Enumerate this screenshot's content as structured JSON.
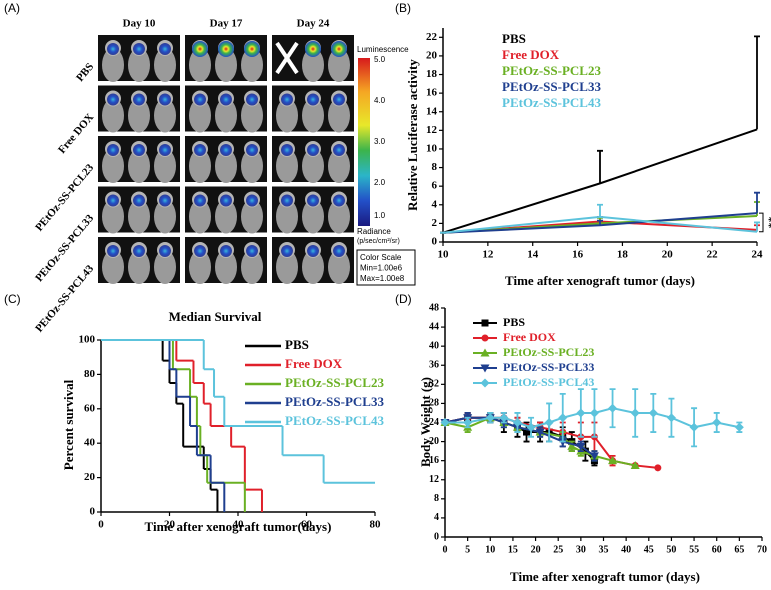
{
  "panel_labels": [
    "(A)",
    "(B)",
    "(C)",
    "(D)"
  ],
  "imaging": {
    "days": [
      "Day 10",
      "Day 17",
      "Day 24"
    ],
    "groups": [
      "PBS",
      "Free DOX",
      "PEtOz-SS-PCL23",
      "PEtOz-SS-PCL33",
      "PEtOz-SS-PCL43"
    ],
    "colorbar": {
      "title": "Luminescence",
      "ticks": [
        "5.0",
        "4.0",
        "3.0",
        "2.0",
        "1.0"
      ],
      "unit_title": "Radiance",
      "unit": "(p/sec/cm²/sr)"
    },
    "scale_box": [
      "Color Scale",
      "Min=1.00e6",
      "Max=1.00e8"
    ]
  },
  "chart_data": [
    {
      "type": "line",
      "x": [
        10,
        17,
        24
      ],
      "xlabel": "Time after xenograft tumor (days)",
      "ylabel": "Relative Luciferase activity",
      "xlim": [
        10,
        24
      ],
      "xticks": [
        10,
        12,
        14,
        16,
        18,
        20,
        22,
        24
      ],
      "ylim": [
        0,
        23
      ],
      "yticks": [
        0,
        2,
        4,
        6,
        8,
        10,
        12,
        14,
        16,
        18,
        20,
        22
      ],
      "legend": "upper left",
      "annotation": "**",
      "series": [
        {
          "name": "PBS",
          "color": "#000000",
          "values": [
            1,
            6.3,
            12.1
          ],
          "errors": [
            0,
            3.5,
            10
          ]
        },
        {
          "name": "Free DOX",
          "color": "#e0202a",
          "values": [
            1,
            2.2,
            1.3
          ],
          "errors": [
            0,
            0.5,
            0.5
          ]
        },
        {
          "name": "PEtOz-SS-PCL23",
          "color": "#6ab023",
          "values": [
            1,
            2.0,
            2.8
          ],
          "errors": [
            0,
            0.6,
            1.5
          ]
        },
        {
          "name": "PEtOz-SS-PCL33",
          "color": "#1f3f8f",
          "values": [
            1,
            1.8,
            3.1
          ],
          "errors": [
            0,
            0.5,
            2.2
          ]
        },
        {
          "name": "PEtOz-SS-PCL43",
          "color": "#5cc3dc",
          "values": [
            1,
            2.7,
            1.1
          ],
          "errors": [
            0,
            1.3,
            1.0
          ]
        }
      ]
    },
    {
      "type": "step",
      "title": "Median Survival",
      "xlabel": "Time after xenograft tumor(days)",
      "ylabel": "Percent survival",
      "xlim": [
        0,
        80
      ],
      "xticks": [
        0,
        20,
        40,
        60,
        80
      ],
      "ylim": [
        0,
        100
      ],
      "yticks": [
        0,
        20,
        40,
        60,
        80,
        100
      ],
      "legend": "upper right",
      "series": [
        {
          "name": "PBS",
          "color": "#000000",
          "x": [
            0,
            18,
            20,
            22,
            24,
            30,
            32,
            34
          ],
          "values": [
            100,
            88,
            75,
            63,
            38,
            25,
            13,
            0
          ]
        },
        {
          "name": "Free DOX",
          "color": "#e0202a",
          "x": [
            0,
            22,
            27,
            30,
            32,
            38,
            42,
            47
          ],
          "values": [
            100,
            88,
            75,
            63,
            50,
            38,
            13,
            0
          ]
        },
        {
          "name": "PEtOz-SS-PCL23",
          "color": "#6ab023",
          "x": [
            0,
            21,
            26,
            28,
            29,
            31,
            42
          ],
          "values": [
            100,
            83,
            67,
            50,
            33,
            17,
            0
          ]
        },
        {
          "name": "PEtOz-SS-PCL33",
          "color": "#1f3f8f",
          "x": [
            0,
            20,
            22,
            26,
            28,
            32,
            36
          ],
          "values": [
            100,
            83,
            67,
            50,
            33,
            17,
            0
          ]
        },
        {
          "name": "PEtOz-SS-PCL43",
          "color": "#5cc3dc",
          "x": [
            0,
            30,
            33,
            36,
            53,
            65,
            80
          ],
          "values": [
            100,
            83,
            67,
            50,
            33,
            17,
            17
          ]
        }
      ]
    },
    {
      "type": "line",
      "xlabel": "Time after xenograft tumor (days)",
      "ylabel": "Body Weight (g)",
      "xlim": [
        0,
        70
      ],
      "xticks": [
        0,
        5,
        10,
        15,
        20,
        25,
        30,
        35,
        40,
        45,
        50,
        55,
        60,
        65,
        70
      ],
      "ylim": [
        0,
        48
      ],
      "yticks": [
        0,
        4,
        8,
        12,
        16,
        20,
        24,
        28,
        32,
        36,
        40,
        44,
        48
      ],
      "legend": "upper left",
      "series": [
        {
          "name": "PBS",
          "color": "#000000",
          "marker": "square",
          "x": [
            0,
            5,
            10,
            13,
            16,
            18,
            21,
            23,
            26,
            28,
            31,
            33
          ],
          "values": [
            24,
            25,
            25,
            24,
            23,
            22,
            22,
            22,
            21,
            20,
            18,
            16
          ],
          "errors": [
            0,
            1,
            1,
            2,
            2,
            2,
            2,
            2,
            2,
            2,
            2,
            1
          ]
        },
        {
          "name": "Free DOX",
          "color": "#e0202a",
          "marker": "circle",
          "x": [
            0,
            5,
            10,
            13,
            16,
            21,
            26,
            30,
            33,
            37,
            42,
            47
          ],
          "values": [
            24,
            25,
            25,
            25,
            24,
            23,
            22,
            21,
            21,
            16,
            15,
            14.5
          ],
          "errors": [
            0,
            1,
            1,
            1,
            1,
            1,
            2,
            3,
            3,
            1,
            0,
            0
          ]
        },
        {
          "name": "PEtOz-SS-PCL23",
          "color": "#6ab023",
          "marker": "triangle-up",
          "x": [
            0,
            5,
            10,
            13,
            16,
            21,
            26,
            28,
            30,
            33,
            37,
            42
          ],
          "values": [
            24,
            23,
            25,
            24,
            23,
            22,
            21,
            19,
            18,
            17,
            16,
            15
          ],
          "errors": [
            0,
            1,
            1,
            1,
            1,
            1,
            1,
            1,
            1,
            1,
            0,
            0
          ]
        },
        {
          "name": "PEtOz-SS-PCL33",
          "color": "#1f3f8f",
          "marker": "triangle-down",
          "x": [
            0,
            5,
            10,
            13,
            16,
            21,
            26,
            30,
            33
          ],
          "values": [
            24,
            25,
            25,
            24,
            23,
            22,
            20,
            19,
            17
          ],
          "errors": [
            0,
            1,
            1,
            1,
            1,
            1,
            1,
            1,
            1
          ]
        },
        {
          "name": "PEtOz-SS-PCL43",
          "color": "#5cc3dc",
          "marker": "diamond",
          "x": [
            0,
            5,
            10,
            13,
            16,
            19,
            23,
            26,
            30,
            33,
            37,
            42,
            46,
            50,
            55,
            60,
            65
          ],
          "values": [
            24,
            24,
            25,
            25,
            24,
            23,
            24,
            25,
            26,
            26,
            27,
            26,
            26,
            25,
            23,
            24,
            23
          ],
          "errors": [
            0,
            1,
            1,
            1,
            2,
            2,
            4,
            5,
            5,
            5,
            4,
            5,
            4,
            4,
            4,
            2,
            1
          ]
        }
      ]
    }
  ]
}
